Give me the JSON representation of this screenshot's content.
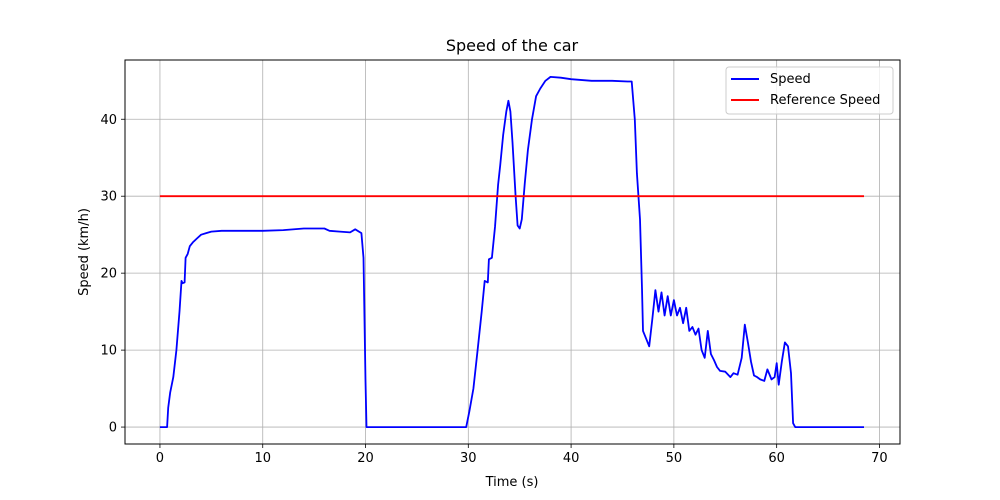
{
  "chart_data": {
    "type": "line",
    "title": "Speed of the car",
    "xlabel": "Time (s)",
    "ylabel": "Speed (km/h)",
    "xlim": [
      -3.4,
      72.0
    ],
    "ylim": [
      -2.2,
      47.7
    ],
    "xticks": [
      0,
      10,
      20,
      30,
      40,
      50,
      60,
      70
    ],
    "yticks": [
      0,
      10,
      20,
      30,
      40
    ],
    "grid": true,
    "legend_position": "top-right",
    "series": [
      {
        "name": "Speed",
        "color": "#0000ff",
        "points": [
          [
            0,
            0
          ],
          [
            0.7,
            0
          ],
          [
            0.8,
            2.5
          ],
          [
            1.0,
            4.5
          ],
          [
            1.3,
            6.5
          ],
          [
            1.6,
            10
          ],
          [
            1.9,
            15
          ],
          [
            2.1,
            19
          ],
          [
            2.2,
            18.7
          ],
          [
            2.4,
            18.8
          ],
          [
            2.5,
            22
          ],
          [
            2.7,
            22.5
          ],
          [
            2.9,
            23.5
          ],
          [
            3.2,
            24
          ],
          [
            3.6,
            24.5
          ],
          [
            4.0,
            25
          ],
          [
            4.5,
            25.2
          ],
          [
            5.0,
            25.4
          ],
          [
            6,
            25.5
          ],
          [
            8,
            25.5
          ],
          [
            10,
            25.5
          ],
          [
            12,
            25.6
          ],
          [
            14,
            25.8
          ],
          [
            16,
            25.8
          ],
          [
            16.5,
            25.5
          ],
          [
            17.5,
            25.4
          ],
          [
            18.5,
            25.3
          ],
          [
            19.0,
            25.7
          ],
          [
            19.6,
            25.2
          ],
          [
            19.8,
            22
          ],
          [
            20.0,
            6
          ],
          [
            20.1,
            0
          ],
          [
            21,
            0
          ],
          [
            25,
            0
          ],
          [
            29.8,
            0
          ],
          [
            30.1,
            2
          ],
          [
            30.5,
            5
          ],
          [
            30.9,
            10
          ],
          [
            31.3,
            15
          ],
          [
            31.6,
            19
          ],
          [
            31.9,
            18.8
          ],
          [
            32.0,
            21.8
          ],
          [
            32.3,
            22
          ],
          [
            32.6,
            26
          ],
          [
            32.9,
            31.5
          ],
          [
            33.1,
            34
          ],
          [
            33.4,
            38
          ],
          [
            33.7,
            41
          ],
          [
            33.9,
            42.4
          ],
          [
            34.1,
            41
          ],
          [
            34.3,
            37
          ],
          [
            34.6,
            30
          ],
          [
            34.8,
            26.2
          ],
          [
            35.0,
            25.8
          ],
          [
            35.2,
            27
          ],
          [
            35.5,
            31.7
          ],
          [
            35.8,
            36
          ],
          [
            36.2,
            40
          ],
          [
            36.6,
            43
          ],
          [
            37.0,
            44
          ],
          [
            37.5,
            45
          ],
          [
            38.0,
            45.5
          ],
          [
            39,
            45.4
          ],
          [
            40,
            45.2
          ],
          [
            42,
            45.0
          ],
          [
            44,
            45.0
          ],
          [
            45.5,
            44.9
          ],
          [
            45.9,
            44.9
          ],
          [
            46.2,
            40
          ],
          [
            46.4,
            33
          ],
          [
            46.7,
            27
          ],
          [
            46.9,
            18
          ],
          [
            47.0,
            12.5
          ],
          [
            47.3,
            11.5
          ],
          [
            47.6,
            10.5
          ],
          [
            47.9,
            14
          ],
          [
            48.2,
            17.8
          ],
          [
            48.5,
            15
          ],
          [
            48.8,
            17.5
          ],
          [
            49.1,
            14.5
          ],
          [
            49.4,
            17
          ],
          [
            49.7,
            14.5
          ],
          [
            50.0,
            16.5
          ],
          [
            50.3,
            14.5
          ],
          [
            50.6,
            15.5
          ],
          [
            50.9,
            13.5
          ],
          [
            51.2,
            15.5
          ],
          [
            51.5,
            12.5
          ],
          [
            51.8,
            13
          ],
          [
            52.1,
            12
          ],
          [
            52.4,
            12.8
          ],
          [
            52.7,
            10
          ],
          [
            53.0,
            9
          ],
          [
            53.3,
            12.5
          ],
          [
            53.6,
            9.5
          ],
          [
            53.9,
            8.7
          ],
          [
            54.2,
            7.8
          ],
          [
            54.5,
            7.3
          ],
          [
            55.0,
            7.2
          ],
          [
            55.5,
            6.5
          ],
          [
            55.8,
            7.0
          ],
          [
            56.2,
            6.8
          ],
          [
            56.6,
            9
          ],
          [
            56.9,
            13.3
          ],
          [
            57.2,
            11
          ],
          [
            57.5,
            8.5
          ],
          [
            57.8,
            6.7
          ],
          [
            58.1,
            6.5
          ],
          [
            58.4,
            6.2
          ],
          [
            58.8,
            6.0
          ],
          [
            59.1,
            7.5
          ],
          [
            59.5,
            6.2
          ],
          [
            59.8,
            6.5
          ],
          [
            60.0,
            8.3
          ],
          [
            60.2,
            5.5
          ],
          [
            60.5,
            8.5
          ],
          [
            60.8,
            11
          ],
          [
            61.1,
            10.5
          ],
          [
            61.4,
            7
          ],
          [
            61.6,
            0.5
          ],
          [
            61.8,
            0
          ],
          [
            63,
            0
          ],
          [
            66,
            0
          ],
          [
            68.5,
            0
          ]
        ]
      },
      {
        "name": "Reference Speed",
        "color": "#ff0000",
        "points": [
          [
            0,
            30
          ],
          [
            68.5,
            30
          ]
        ]
      }
    ]
  }
}
